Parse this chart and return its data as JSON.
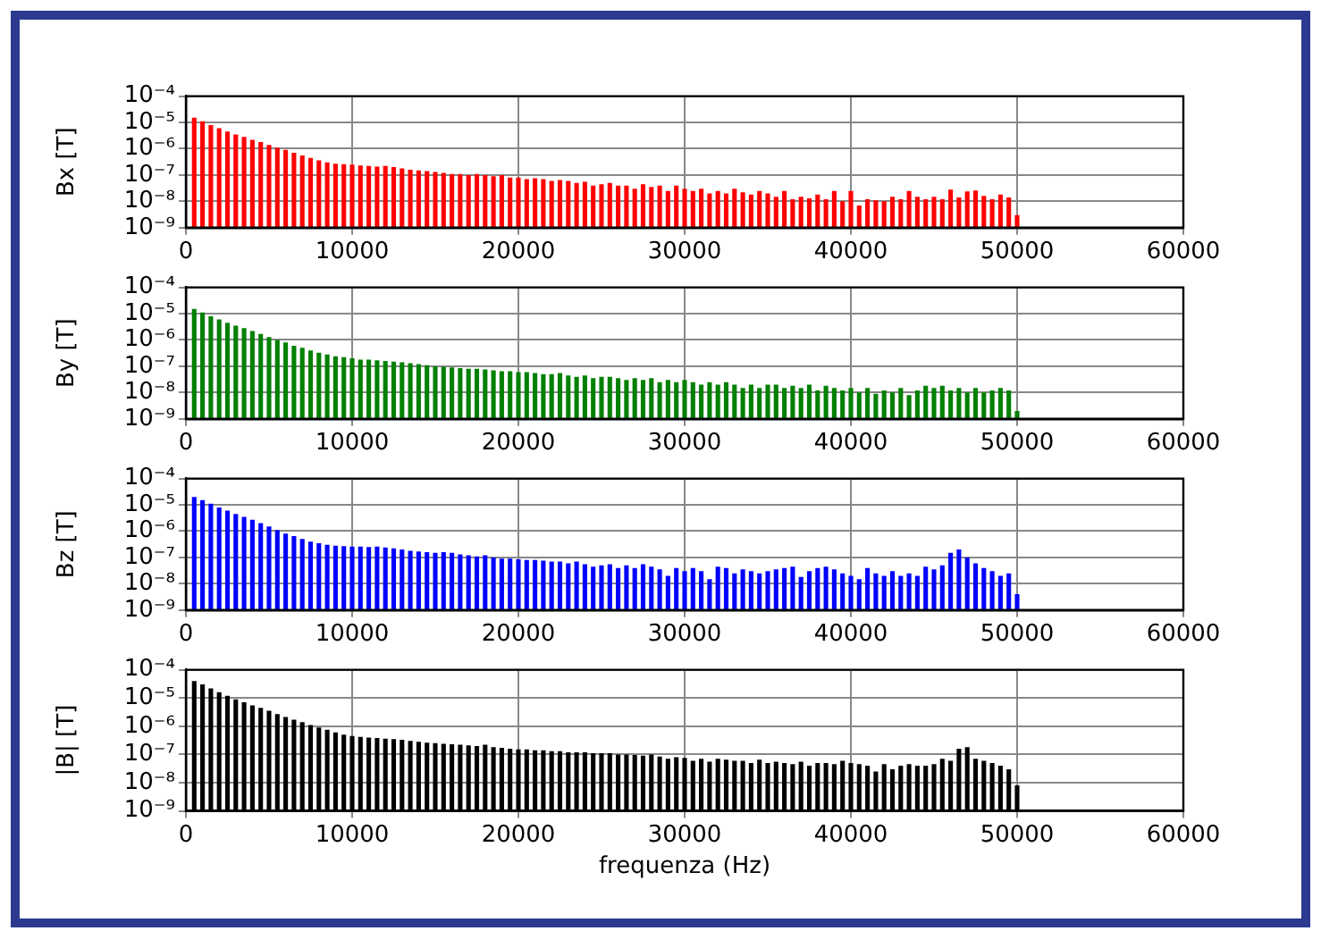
{
  "chart_data": [
    {
      "type": "bar",
      "ylabel": "Bx [T]",
      "color": "#ff0000",
      "log": "y",
      "grid": true,
      "xlim": [
        0,
        60000
      ],
      "xticks": [
        0,
        10000,
        20000,
        30000,
        40000,
        50000,
        60000
      ],
      "ylim": [
        1e-09,
        0.0001
      ],
      "yticks": [
        {
          "value": 1e-09,
          "label": "10⁻⁹"
        },
        {
          "value": 1e-08,
          "label": "10⁻⁸"
        },
        {
          "value": 1e-07,
          "label": "10⁻⁷"
        },
        {
          "value": 1e-06,
          "label": "10⁻⁶"
        },
        {
          "value": 1e-05,
          "label": "10⁻⁵"
        },
        {
          "value": 0.0001,
          "label": "10⁻⁴"
        }
      ],
      "x": [
        500,
        1000,
        1500,
        2000,
        2500,
        3000,
        3500,
        4000,
        4500,
        5000,
        5500,
        6000,
        6500,
        7000,
        7500,
        8000,
        8500,
        9000,
        9500,
        10000,
        10500,
        11000,
        11500,
        12000,
        12500,
        13000,
        13500,
        14000,
        14500,
        15000,
        15500,
        16000,
        16500,
        17000,
        17500,
        18000,
        18500,
        19000,
        19500,
        20000,
        20500,
        21000,
        21500,
        22000,
        22500,
        23000,
        23500,
        24000,
        24500,
        25000,
        25500,
        26000,
        26500,
        27000,
        27500,
        28000,
        28500,
        29000,
        29500,
        30000,
        30500,
        31000,
        31500,
        32000,
        32500,
        33000,
        33500,
        34000,
        34500,
        35000,
        35500,
        36000,
        36500,
        37000,
        37500,
        38000,
        38500,
        39000,
        39500,
        40000,
        40500,
        41000,
        41500,
        42000,
        42500,
        43000,
        43500,
        44000,
        44500,
        45000,
        45500,
        46000,
        46500,
        47000,
        47500,
        48000,
        48500,
        49000,
        49500,
        50000
      ],
      "values": [
        1.5e-05,
        1.1e-05,
        8e-06,
        6e-06,
        4.5e-06,
        3.5e-06,
        2.8e-06,
        2.2e-06,
        1.8e-06,
        1.4e-06,
        1.1e-06,
        9e-07,
        7e-07,
        5.5e-07,
        4.5e-07,
        3.6e-07,
        3e-07,
        2.7e-07,
        2.6e-07,
        2.5e-07,
        2.3e-07,
        2.2e-07,
        2.1e-07,
        2.2e-07,
        2e-07,
        1.8e-07,
        1.6e-07,
        1.5e-07,
        1.4e-07,
        1.3e-07,
        1.2e-07,
        1.1e-07,
        1.1e-07,
        1e-07,
        1.1e-07,
        1e-07,
        9e-08,
        1e-07,
        8e-08,
        8e-08,
        7e-08,
        7.5e-08,
        7e-08,
        6e-08,
        6.5e-08,
        6e-08,
        5e-08,
        5.5e-08,
        4e-08,
        4.5e-08,
        5e-08,
        4e-08,
        4e-08,
        3e-08,
        4.5e-08,
        3.5e-08,
        4e-08,
        2.5e-08,
        4e-08,
        3e-08,
        2.5e-08,
        3e-08,
        2e-08,
        2.5e-08,
        2e-08,
        3e-08,
        2.2e-08,
        1.8e-08,
        2.5e-08,
        2e-08,
        1.5e-08,
        2.5e-08,
        1.2e-08,
        1.5e-08,
        1.3e-08,
        1.8e-08,
        1.2e-08,
        2.5e-08,
        1e-08,
        2.5e-08,
        7e-09,
        1.2e-08,
        1.1e-08,
        1e-08,
        1.5e-08,
        1.2e-08,
        2.5e-08,
        1.5e-08,
        1.2e-08,
        1.5e-08,
        1.2e-08,
        2.8e-08,
        1.4e-08,
        2.4e-08,
        2.6e-08,
        1.6e-08,
        1.2e-08,
        1.8e-08,
        1.4e-08,
        3e-09
      ]
    },
    {
      "type": "bar",
      "ylabel": "By [T]",
      "color": "#008000",
      "log": "y",
      "grid": true,
      "xlim": [
        0,
        60000
      ],
      "xticks": [
        0,
        10000,
        20000,
        30000,
        40000,
        50000,
        60000
      ],
      "ylim": [
        1e-09,
        0.0001
      ],
      "yticks": [
        {
          "value": 1e-09,
          "label": "10⁻⁹"
        },
        {
          "value": 1e-08,
          "label": "10⁻⁸"
        },
        {
          "value": 1e-07,
          "label": "10⁻⁷"
        },
        {
          "value": 1e-06,
          "label": "10⁻⁶"
        },
        {
          "value": 1e-05,
          "label": "10⁻⁵"
        },
        {
          "value": 0.0001,
          "label": "10⁻⁴"
        }
      ],
      "x": [
        500,
        1000,
        1500,
        2000,
        2500,
        3000,
        3500,
        4000,
        4500,
        5000,
        5500,
        6000,
        6500,
        7000,
        7500,
        8000,
        8500,
        9000,
        9500,
        10000,
        10500,
        11000,
        11500,
        12000,
        12500,
        13000,
        13500,
        14000,
        14500,
        15000,
        15500,
        16000,
        16500,
        17000,
        17500,
        18000,
        18500,
        19000,
        19500,
        20000,
        20500,
        21000,
        21500,
        22000,
        22500,
        23000,
        23500,
        24000,
        24500,
        25000,
        25500,
        26000,
        26500,
        27000,
        27500,
        28000,
        28500,
        29000,
        29500,
        30000,
        30500,
        31000,
        31500,
        32000,
        32500,
        33000,
        33500,
        34000,
        34500,
        35000,
        35500,
        36000,
        36500,
        37000,
        37500,
        38000,
        38500,
        39000,
        39500,
        40000,
        40500,
        41000,
        41500,
        42000,
        42500,
        43000,
        43500,
        44000,
        44500,
        45000,
        45500,
        46000,
        46500,
        47000,
        47500,
        48000,
        48500,
        49000,
        49500,
        50000
      ],
      "values": [
        1.5e-05,
        1.1e-05,
        8e-06,
        6e-06,
        4.5e-06,
        3.5e-06,
        2.8e-06,
        2.2e-06,
        1.7e-06,
        1.3e-06,
        1e-06,
        8e-07,
        6e-07,
        5e-07,
        4e-07,
        3.3e-07,
        2.8e-07,
        2.4e-07,
        2.2e-07,
        2e-07,
        1.8e-07,
        1.8e-07,
        1.7e-07,
        1.6e-07,
        1.5e-07,
        1.4e-07,
        1.3e-07,
        1.2e-07,
        1.1e-07,
        1e-07,
        9.5e-08,
        9e-08,
        8.5e-08,
        8e-08,
        8e-08,
        7.5e-08,
        7e-08,
        6.5e-08,
        6.5e-08,
        6e-08,
        6e-08,
        5.5e-08,
        5e-08,
        5e-08,
        5.5e-08,
        4.5e-08,
        4e-08,
        4.5e-08,
        3.5e-08,
        4e-08,
        4e-08,
        3.5e-08,
        3e-08,
        3.5e-08,
        3e-08,
        3.5e-08,
        2.5e-08,
        3e-08,
        2.5e-08,
        3e-08,
        2.5e-08,
        2e-08,
        2.5e-08,
        2e-08,
        2.5e-08,
        2e-08,
        1.5e-08,
        2e-08,
        1.5e-08,
        2e-08,
        2e-08,
        1.5e-08,
        1.8e-08,
        1.5e-08,
        2e-08,
        1.2e-08,
        1.8e-08,
        1.5e-08,
        1.2e-08,
        1.5e-08,
        1e-08,
        1.5e-08,
        9e-09,
        1.2e-08,
        1e-08,
        1.5e-08,
        8e-09,
        1.2e-08,
        1.8e-08,
        1.5e-08,
        1.8e-08,
        1.2e-08,
        1.5e-08,
        1e-08,
        1.5e-08,
        1e-08,
        1.2e-08,
        1.5e-08,
        1.2e-08,
        2e-09
      ]
    },
    {
      "type": "bar",
      "ylabel": "Bz [T]",
      "color": "#0000ff",
      "log": "y",
      "grid": true,
      "xlim": [
        0,
        60000
      ],
      "xticks": [
        0,
        10000,
        20000,
        30000,
        40000,
        50000,
        60000
      ],
      "ylim": [
        1e-09,
        0.0001
      ],
      "yticks": [
        {
          "value": 1e-09,
          "label": "10⁻⁹"
        },
        {
          "value": 1e-08,
          "label": "10⁻⁸"
        },
        {
          "value": 1e-07,
          "label": "10⁻⁷"
        },
        {
          "value": 1e-06,
          "label": "10⁻⁶"
        },
        {
          "value": 1e-05,
          "label": "10⁻⁵"
        },
        {
          "value": 0.0001,
          "label": "10⁻⁴"
        }
      ],
      "x": [
        500,
        1000,
        1500,
        2000,
        2500,
        3000,
        3500,
        4000,
        4500,
        5000,
        5500,
        6000,
        6500,
        7000,
        7500,
        8000,
        8500,
        9000,
        9500,
        10000,
        10500,
        11000,
        11500,
        12000,
        12500,
        13000,
        13500,
        14000,
        14500,
        15000,
        15500,
        16000,
        16500,
        17000,
        17500,
        18000,
        18500,
        19000,
        19500,
        20000,
        20500,
        21000,
        21500,
        22000,
        22500,
        23000,
        23500,
        24000,
        24500,
        25000,
        25500,
        26000,
        26500,
        27000,
        27500,
        28000,
        28500,
        29000,
        29500,
        30000,
        30500,
        31000,
        31500,
        32000,
        32500,
        33000,
        33500,
        34000,
        34500,
        35000,
        35500,
        36000,
        36500,
        37000,
        37500,
        38000,
        38500,
        39000,
        39500,
        40000,
        40500,
        41000,
        41500,
        42000,
        42500,
        43000,
        43500,
        44000,
        44500,
        45000,
        45500,
        46000,
        46500,
        47000,
        47500,
        48000,
        48500,
        49000,
        49500,
        50000
      ],
      "values": [
        2e-05,
        1.5e-05,
        1.1e-05,
        8e-06,
        6e-06,
        4.5e-06,
        3.5e-06,
        2.7e-06,
        2e-06,
        1.5e-06,
        1.1e-06,
        8e-07,
        6.5e-07,
        5e-07,
        4e-07,
        3.5e-07,
        3e-07,
        2.8e-07,
        2.7e-07,
        2.6e-07,
        2.6e-07,
        2.5e-07,
        2.6e-07,
        2.4e-07,
        2.2e-07,
        2e-07,
        1.8e-07,
        1.7e-07,
        1.6e-07,
        1.5e-07,
        1.6e-07,
        1.5e-07,
        1.3e-07,
        1.2e-07,
        1.1e-07,
        1.2e-07,
        1e-07,
        9e-08,
        9e-08,
        8.5e-08,
        8e-08,
        8e-08,
        7.5e-08,
        7e-08,
        7e-08,
        6e-08,
        7e-08,
        5.5e-08,
        4.5e-08,
        5e-08,
        5.5e-08,
        4e-08,
        5e-08,
        4e-08,
        5.5e-08,
        4.5e-08,
        3.5e-08,
        2e-08,
        4e-08,
        3e-08,
        4e-08,
        3e-08,
        1.5e-08,
        4.5e-08,
        4e-08,
        2.5e-08,
        3.5e-08,
        3e-08,
        2.5e-08,
        3e-08,
        3.5e-08,
        4e-08,
        4.5e-08,
        1.8e-08,
        3e-08,
        4e-08,
        4.5e-08,
        3.5e-08,
        2.5e-08,
        2e-08,
        1.5e-08,
        4e-08,
        2.5e-08,
        2e-08,
        3e-08,
        2e-08,
        2.5e-08,
        2e-08,
        4.5e-08,
        3.5e-08,
        5e-08,
        1.5e-07,
        2e-07,
        1e-07,
        6e-08,
        4e-08,
        3e-08,
        2e-08,
        2.5e-08,
        4e-09
      ]
    },
    {
      "type": "bar",
      "ylabel": "|B| [T]",
      "xlabel": "frequenza (Hz)",
      "color": "#000000",
      "log": "y",
      "grid": true,
      "xlim": [
        0,
        60000
      ],
      "xticks": [
        0,
        10000,
        20000,
        30000,
        40000,
        50000,
        60000
      ],
      "ylim": [
        1e-09,
        0.0001
      ],
      "yticks": [
        {
          "value": 1e-09,
          "label": "10⁻⁹"
        },
        {
          "value": 1e-08,
          "label": "10⁻⁸"
        },
        {
          "value": 1e-07,
          "label": "10⁻⁷"
        },
        {
          "value": 1e-06,
          "label": "10⁻⁶"
        },
        {
          "value": 1e-05,
          "label": "10⁻⁵"
        },
        {
          "value": 0.0001,
          "label": "10⁻⁴"
        }
      ],
      "x": [
        500,
        1000,
        1500,
        2000,
        2500,
        3000,
        3500,
        4000,
        4500,
        5000,
        5500,
        6000,
        6500,
        7000,
        7500,
        8000,
        8500,
        9000,
        9500,
        10000,
        10500,
        11000,
        11500,
        12000,
        12500,
        13000,
        13500,
        14000,
        14500,
        15000,
        15500,
        16000,
        16500,
        17000,
        17500,
        18000,
        18500,
        19000,
        19500,
        20000,
        20500,
        21000,
        21500,
        22000,
        22500,
        23000,
        23500,
        24000,
        24500,
        25000,
        25500,
        26000,
        26500,
        27000,
        27500,
        28000,
        28500,
        29000,
        29500,
        30000,
        30500,
        31000,
        31500,
        32000,
        32500,
        33000,
        33500,
        34000,
        34500,
        35000,
        35500,
        36000,
        36500,
        37000,
        37500,
        38000,
        38500,
        39000,
        39500,
        40000,
        40500,
        41000,
        41500,
        42000,
        42500,
        43000,
        43500,
        44000,
        44500,
        45000,
        45500,
        46000,
        46500,
        47000,
        47500,
        48000,
        48500,
        49000,
        49500,
        50000
      ],
      "values": [
        4e-05,
        3e-05,
        2.2e-05,
        1.6e-05,
        1.2e-05,
        9e-06,
        7e-06,
        5.5e-06,
        4.5e-06,
        3.5e-06,
        2.7e-06,
        2.1e-06,
        1.7e-06,
        1.4e-06,
        1.1e-06,
        9e-07,
        7.5e-07,
        6e-07,
        5e-07,
        4.5e-07,
        4.2e-07,
        4e-07,
        3.8e-07,
        3.6e-07,
        3.5e-07,
        3.3e-07,
        3e-07,
        2.8e-07,
        2.6e-07,
        2.5e-07,
        2.4e-07,
        2.3e-07,
        2.2e-07,
        2.1e-07,
        2e-07,
        2.2e-07,
        1.8e-07,
        1.7e-07,
        1.6e-07,
        1.5e-07,
        1.5e-07,
        1.4e-07,
        1.4e-07,
        1.3e-07,
        1.3e-07,
        1.2e-07,
        1.2e-07,
        1.2e-07,
        1.1e-07,
        1.1e-07,
        1.1e-07,
        1e-07,
        1e-07,
        9.5e-08,
        9e-08,
        1e-07,
        8.5e-08,
        7e-08,
        8e-08,
        7.5e-08,
        6e-08,
        7e-08,
        5.5e-08,
        7e-08,
        6.5e-08,
        6e-08,
        6e-08,
        5e-08,
        6.5e-08,
        5e-08,
        5.5e-08,
        5e-08,
        4.5e-08,
        5.5e-08,
        4e-08,
        5e-08,
        5e-08,
        4.5e-08,
        6e-08,
        5e-08,
        4.5e-08,
        4e-08,
        2.5e-08,
        4.5e-08,
        3e-08,
        4e-08,
        4.5e-08,
        4e-08,
        4e-08,
        4.5e-08,
        7e-08,
        6e-08,
        1.6e-07,
        1.8e-07,
        7e-08,
        6e-08,
        5e-08,
        4e-08,
        3e-08,
        8e-09
      ]
    }
  ]
}
